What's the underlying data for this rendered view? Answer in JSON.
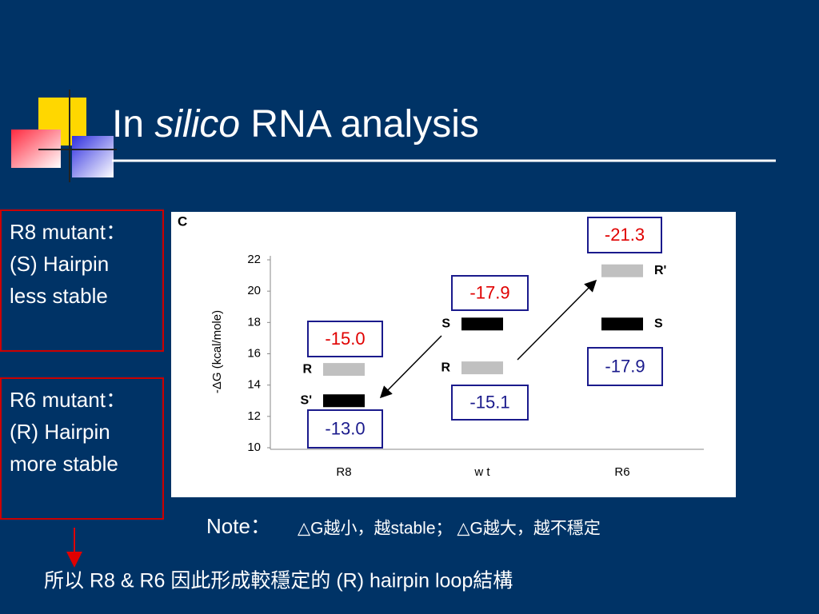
{
  "title": {
    "prefix": "In",
    "italic": "silico",
    "suffix": "RNA analysis"
  },
  "side_notes": [
    {
      "lines": [
        "R8 mutant：",
        "(S) Hairpin",
        "less stable"
      ]
    },
    {
      "lines": [
        "R6 mutant：",
        "(R) Hairpin",
        "more stable"
      ]
    }
  ],
  "figure": {
    "type": "energy-levels",
    "panel": "C",
    "y_label": "-ΔG (kcal/mole)",
    "ylim": [
      10,
      22
    ],
    "yticks": [
      10,
      12,
      14,
      16,
      18,
      20,
      22
    ],
    "groups": [
      {
        "name": "R8",
        "levels": [
          {
            "label": "R",
            "value": 15.0,
            "color": "#c0c0c0",
            "callout": "-15.0",
            "callout_color": "#e00000"
          },
          {
            "label": "S'",
            "value": 13.0,
            "color": "#000000",
            "callout": "-13.0",
            "callout_color": "#1a1a8c"
          }
        ]
      },
      {
        "name": "w t",
        "levels": [
          {
            "label": "S",
            "value": 17.9,
            "color": "#000000",
            "callout": "-17.9",
            "callout_color": "#e00000"
          },
          {
            "label": "R",
            "value": 15.1,
            "color": "#c0c0c0",
            "callout": "-15.1",
            "callout_color": "#1a1a8c"
          }
        ]
      },
      {
        "name": "R6",
        "levels": [
          {
            "label": "R'",
            "value": 21.3,
            "color": "#c0c0c0",
            "callout": "-21.3",
            "callout_color": "#e00000"
          },
          {
            "label": "S",
            "value": 17.9,
            "color": "#000000",
            "callout": "-17.9",
            "callout_color": "#1a1a8c"
          }
        ]
      }
    ]
  },
  "note": {
    "head": "Note：",
    "text": "△G越小，越stable； △G越大，越不穩定"
  },
  "conclusion": "所以 R8 & R6 因此形成較穩定的 (R) hairpin loop結構"
}
